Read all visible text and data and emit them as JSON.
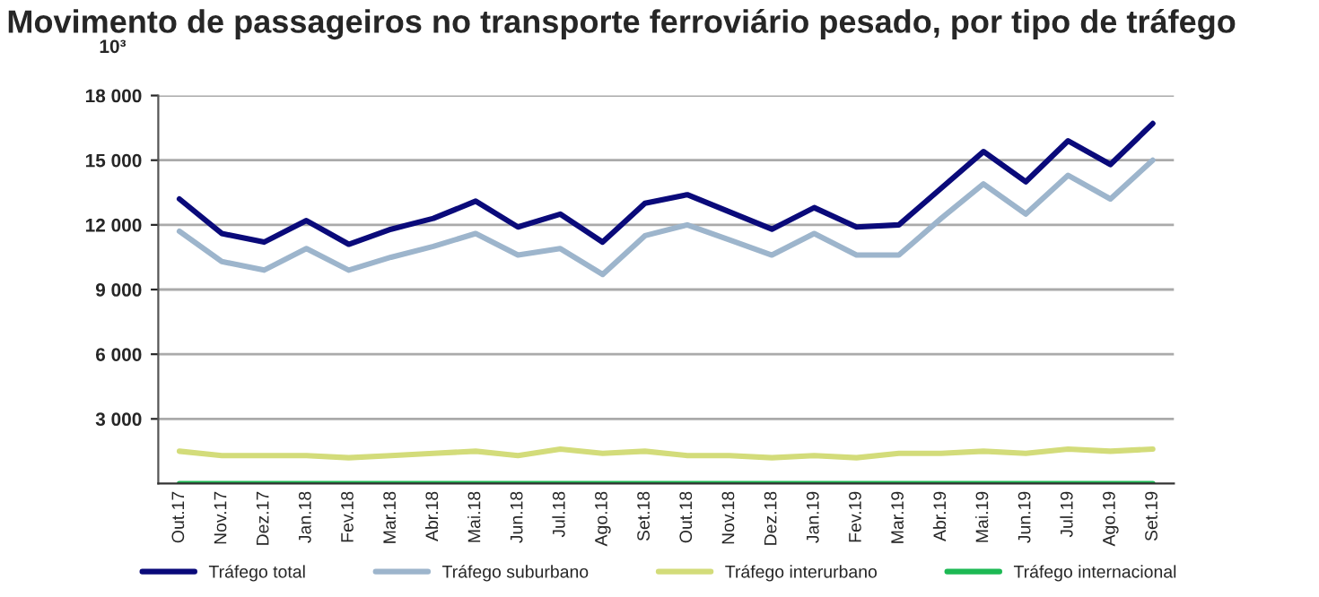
{
  "chart_data": {
    "type": "line",
    "title": "Movimento de passageiros no transporte ferroviário pesado, por tipo de tráfego",
    "ylabel": "10³",
    "categories": [
      "Out.17",
      "Nov.17",
      "Dez.17",
      "Jan.18",
      "Fev.18",
      "Mar.18",
      "Abr.18",
      "Mai.18",
      "Jun.18",
      "Jul.18",
      "Ago.18",
      "Set.18",
      "Out.18",
      "Nov.18",
      "Dez.18",
      "Jan.19",
      "Fev.19",
      "Mar.19",
      "Abr.19",
      "Mai.19",
      "Jun.19",
      "Jul.19",
      "Ago.19",
      "Set.19"
    ],
    "series": [
      {
        "name": "Tráfego total",
        "color": "#0a0a7a",
        "values": [
          13200,
          11600,
          11200,
          12200,
          11100,
          11800,
          12300,
          13100,
          11900,
          12500,
          11200,
          13000,
          13400,
          12600,
          11800,
          12800,
          11900,
          12000,
          13700,
          15400,
          14000,
          15900,
          14800,
          16700
        ]
      },
      {
        "name": "Tráfego suburbano",
        "color": "#9db5cc",
        "values": [
          11700,
          10300,
          9900,
          10900,
          9900,
          10500,
          11000,
          11600,
          10600,
          10900,
          9700,
          11500,
          12000,
          11300,
          10600,
          11600,
          10600,
          10600,
          12300,
          13900,
          12500,
          14300,
          13200,
          15000
        ]
      },
      {
        "name": "Tráfego interurbano",
        "color": "#d3dc7a",
        "values": [
          1500,
          1300,
          1300,
          1300,
          1200,
          1300,
          1400,
          1500,
          1300,
          1600,
          1400,
          1500,
          1300,
          1300,
          1200,
          1300,
          1200,
          1400,
          1400,
          1500,
          1400,
          1600,
          1500,
          1600
        ]
      },
      {
        "name": "Tráfego internacional",
        "color": "#1db954",
        "values": [
          0,
          0,
          0,
          0,
          0,
          0,
          0,
          0,
          0,
          0,
          0,
          0,
          0,
          0,
          0,
          0,
          0,
          0,
          0,
          0,
          0,
          0,
          0,
          0
        ]
      }
    ],
    "ylim": [
      0,
      18000
    ],
    "yticks": [
      {
        "value": 3000,
        "label": "3 000"
      },
      {
        "value": 6000,
        "label": "6 000"
      },
      {
        "value": 9000,
        "label": "9 000"
      },
      {
        "value": 12000,
        "label": "12 000"
      },
      {
        "value": 15000,
        "label": "15 000"
      },
      {
        "value": 18000,
        "label": "18 000"
      }
    ],
    "grid": "y",
    "legend": "bottom",
    "marker": "none",
    "line_style": "solid"
  }
}
